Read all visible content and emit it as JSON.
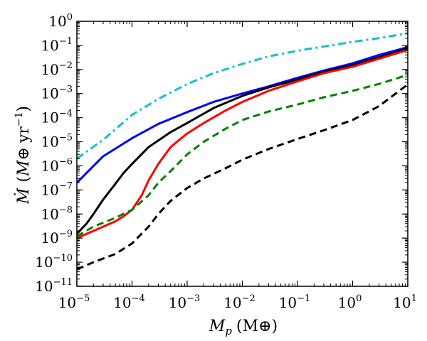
{
  "chart_data": {
    "type": "line",
    "title": "",
    "xscale": "log",
    "yscale": "log",
    "xlim": [
      1e-05,
      10
    ],
    "ylim": [
      1e-11,
      1
    ],
    "grid": false,
    "legend": "none",
    "xlabel": {
      "main": "M",
      "sub": "p",
      "unit": "(M⊕)"
    },
    "ylabel": {
      "main": "Ṁ",
      "unit_open": "(",
      "unit_mass": "M⊕",
      "unit_time": "yr",
      "unit_exp": "−1",
      "unit_close": ")"
    },
    "x_ticks": [
      {
        "value": 1e-05,
        "base": "10",
        "exp": "−5"
      },
      {
        "value": 0.0001,
        "base": "10",
        "exp": "−4"
      },
      {
        "value": 0.001,
        "base": "10",
        "exp": "−3"
      },
      {
        "value": 0.01,
        "base": "10",
        "exp": "−2"
      },
      {
        "value": 0.1,
        "base": "10",
        "exp": "−1"
      },
      {
        "value": 1,
        "base": "10",
        "exp": "0"
      },
      {
        "value": 10,
        "base": "10",
        "exp": "1"
      }
    ],
    "y_ticks": [
      {
        "value": 1e-11,
        "base": "10",
        "exp": "−11"
      },
      {
        "value": 1e-10,
        "base": "10",
        "exp": "−10"
      },
      {
        "value": 1e-09,
        "base": "10",
        "exp": "−9"
      },
      {
        "value": 1e-08,
        "base": "10",
        "exp": "−8"
      },
      {
        "value": 1e-07,
        "base": "10",
        "exp": "−7"
      },
      {
        "value": 1e-06,
        "base": "10",
        "exp": "−6"
      },
      {
        "value": 1e-05,
        "base": "10",
        "exp": "−5"
      },
      {
        "value": 0.0001,
        "base": "10",
        "exp": "−4"
      },
      {
        "value": 0.001,
        "base": "10",
        "exp": "−3"
      },
      {
        "value": 0.01,
        "base": "10",
        "exp": "−2"
      },
      {
        "value": 0.1,
        "base": "10",
        "exp": "−1"
      },
      {
        "value": 1,
        "base": "10",
        "exp": "0"
      }
    ],
    "series": [
      {
        "name": "cyan-dashdot",
        "color": "#17becf",
        "style": "dashdot",
        "x": [
          1e-05,
          3e-05,
          0.0001,
          0.0003,
          0.001,
          0.003,
          0.01,
          0.03,
          0.1,
          0.3,
          1,
          3,
          10
        ],
        "y": [
          2e-06,
          1.2e-05,
          0.00013,
          0.0006,
          0.0025,
          0.007,
          0.017,
          0.035,
          0.06,
          0.09,
          0.14,
          0.2,
          0.32
        ]
      },
      {
        "name": "blue-solid",
        "color": "#0000ff",
        "style": "solid",
        "x": [
          1e-05,
          3e-05,
          0.0001,
          0.0003,
          0.001,
          0.003,
          0.01,
          0.03,
          0.1,
          0.3,
          1,
          3,
          10
        ],
        "y": [
          2e-07,
          2.5e-06,
          1.4e-05,
          5.5e-05,
          0.00017,
          0.00045,
          0.001,
          0.002,
          0.0045,
          0.009,
          0.018,
          0.04,
          0.085
        ]
      },
      {
        "name": "black-solid",
        "color": "#000000",
        "style": "solid",
        "x": [
          1e-05,
          1.5e-05,
          2e-05,
          3e-05,
          5e-05,
          7e-05,
          0.0001,
          0.0002,
          0.0005,
          0.001,
          0.003,
          0.01,
          0.03,
          0.1,
          0.3,
          1,
          3,
          10
        ],
        "y": [
          1.5e-09,
          4e-09,
          1e-08,
          4e-08,
          1.8e-07,
          5e-07,
          1.2e-06,
          6e-06,
          2.5e-05,
          6e-05,
          0.00025,
          0.0008,
          0.0018,
          0.0038,
          0.008,
          0.015,
          0.032,
          0.075
        ]
      },
      {
        "name": "red-solid",
        "color": "#ff0000",
        "style": "solid",
        "x": [
          1e-05,
          2e-05,
          5e-05,
          7e-05,
          0.0001,
          0.00015,
          0.0002,
          0.0003,
          0.0005,
          0.001,
          0.002,
          0.005,
          0.01,
          0.03,
          0.1,
          0.3,
          1,
          3,
          10
        ],
        "y": [
          1e-09,
          2e-09,
          5e-09,
          8e-09,
          1.5e-08,
          6e-08,
          2.5e-07,
          1.2e-06,
          6e-06,
          2.2e-05,
          6e-05,
          0.0002,
          0.00045,
          0.0013,
          0.0032,
          0.007,
          0.013,
          0.028,
          0.065
        ]
      },
      {
        "name": "green-dashed",
        "color": "#008000",
        "style": "dashed",
        "x": [
          1e-05,
          2e-05,
          5e-05,
          0.0001,
          0.0002,
          0.0003,
          0.0005,
          0.001,
          0.002,
          0.005,
          0.01,
          0.03,
          0.1,
          0.3,
          1,
          3,
          10
        ],
        "y": [
          1.2e-09,
          3e-09,
          7e-09,
          1.5e-08,
          6e-08,
          2e-07,
          6e-07,
          3e-06,
          1e-05,
          3.5e-05,
          8e-05,
          0.00018,
          0.00035,
          0.0007,
          0.0013,
          0.0025,
          0.006
        ]
      },
      {
        "name": "black-dashed",
        "color": "#000000",
        "style": "dashed",
        "x": [
          1e-05,
          2e-05,
          5e-05,
          0.0001,
          0.0002,
          0.0003,
          0.0005,
          0.001,
          0.002,
          0.005,
          0.01,
          0.03,
          0.1,
          0.3,
          1,
          3,
          10
        ],
        "y": [
          5e-11,
          1e-10,
          2.2e-10,
          6e-10,
          3e-09,
          1e-08,
          3.5e-08,
          1.2e-07,
          3e-07,
          8e-07,
          1.8e-06,
          5e-06,
          1.3e-05,
          3e-05,
          8e-05,
          0.0003,
          0.0024
        ]
      }
    ]
  }
}
